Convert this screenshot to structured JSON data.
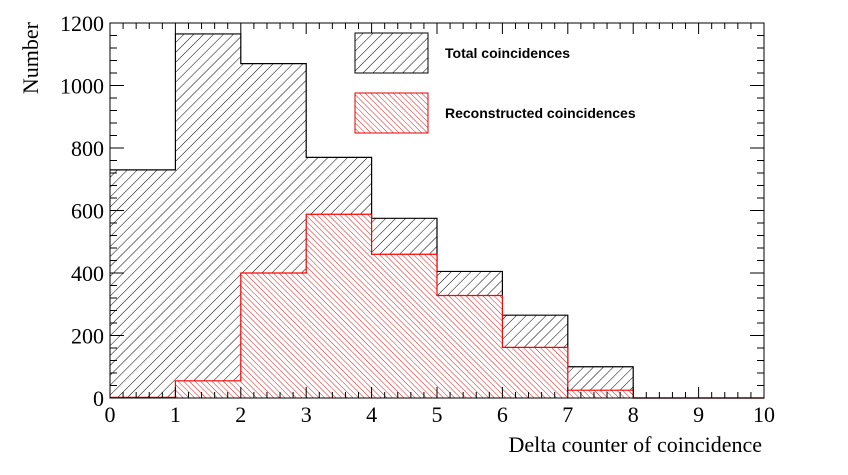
{
  "chart_data": {
    "type": "bar",
    "bin_edges": [
      0,
      1,
      2,
      3,
      4,
      5,
      6,
      7,
      8,
      9,
      10
    ],
    "series": [
      {
        "name": "Total coincidences",
        "values": [
          730,
          1165,
          1070,
          770,
          575,
          405,
          265,
          100,
          0,
          0
        ],
        "color": "#000000"
      },
      {
        "name": "Reconstructed coincidences",
        "values": [
          2,
          55,
          400,
          588,
          460,
          328,
          162,
          25,
          0,
          0
        ],
        "color": "#ff0000"
      }
    ],
    "xlabel": "Delta counter of coincidence",
    "ylabel": "Number",
    "xlim": [
      0,
      10
    ],
    "ylim": [
      0,
      1200
    ],
    "x_ticks": [
      "0",
      "1",
      "2",
      "3",
      "4",
      "5",
      "6",
      "7",
      "8",
      "9",
      "10"
    ],
    "y_ticks": [
      "0",
      "200",
      "400",
      "600",
      "800",
      "1000",
      "1200"
    ],
    "legend_position": "top-right",
    "grid": false
  }
}
